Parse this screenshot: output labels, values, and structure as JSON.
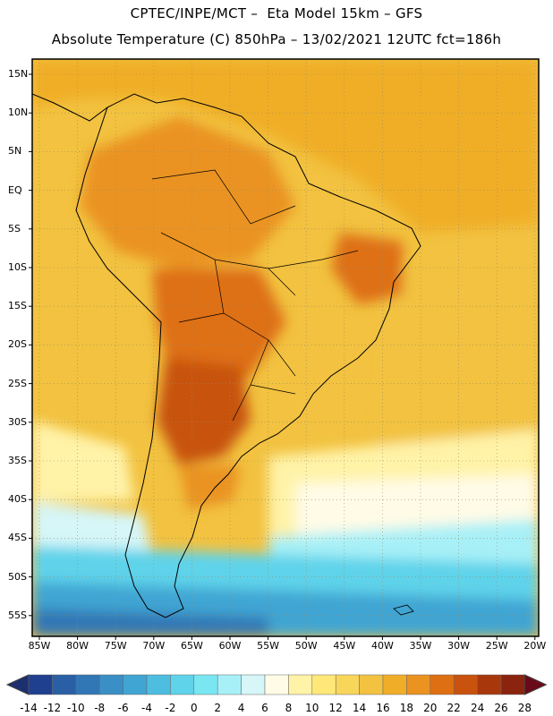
{
  "header": {
    "line1": "CPTEC/INPE/MCT –  Eta Model 15km – GFS",
    "line2": "Absolute Temperature (C) 850hPa – 13/02/2021 12UTC fct=186h"
  },
  "map": {
    "lat_labels": [
      "15N",
      "10N",
      "5N",
      "EQ",
      "5S",
      "10S",
      "15S",
      "20S",
      "25S",
      "30S",
      "35S",
      "40S",
      "45S",
      "50S",
      "55S"
    ],
    "lon_labels": [
      "85W",
      "80W",
      "75W",
      "70W",
      "65W",
      "60W",
      "55W",
      "50W",
      "45W",
      "40W",
      "35W",
      "30W",
      "25W",
      "20W"
    ],
    "shading": "Absolute temperature at 850 hPa",
    "grid": "on (dotted)"
  },
  "colorbar": {
    "levels": [
      "-14",
      "-12",
      "-10",
      "-8",
      "-6",
      "-4",
      "-2",
      "0",
      "2",
      "4",
      "6",
      "8",
      "10",
      "12",
      "14",
      "16",
      "18",
      "20",
      "22",
      "24",
      "26",
      "28"
    ],
    "colors": [
      "#1f3f8f",
      "#2a5fa5",
      "#3177b5",
      "#3a8fc6",
      "#41a5d3",
      "#4dbde0",
      "#5ed3ea",
      "#7ae6f2",
      "#a8f0f7",
      "#d6f6f8",
      "#fffbe6",
      "#fff3a8",
      "#ffe878",
      "#f8d65a",
      "#f2c240",
      "#f0ae28",
      "#ea9320",
      "#de6f12",
      "#c8520e",
      "#a8380c",
      "#8a240e"
    ],
    "end_low": "#1c2f6e",
    "end_high": "#6a0a18"
  }
}
